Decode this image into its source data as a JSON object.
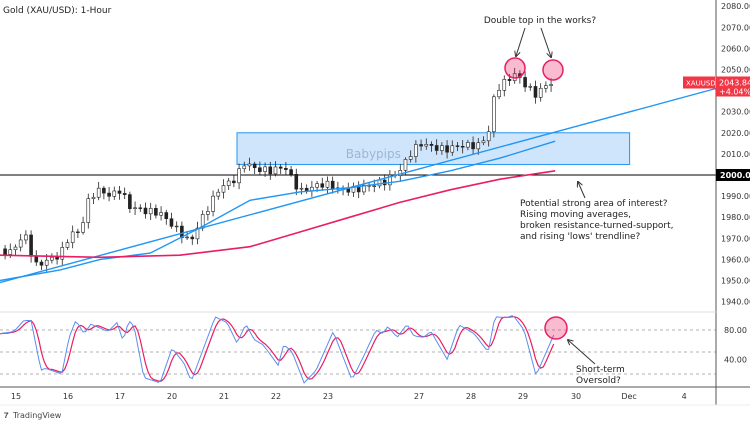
{
  "chart_data": {
    "type": "candlestick",
    "title": "Gold (XAU/USD): 1-Hour",
    "symbol": "XAUUSD",
    "last_price": "2043.845",
    "change": "+4.04%",
    "price_axis": {
      "ylim": [
        1935,
        2082
      ],
      "ticks": [
        2080,
        2070,
        2060,
        2050,
        2030,
        2020,
        2010,
        2000,
        1990,
        1980,
        1970,
        1960,
        1950,
        1940
      ],
      "tick_labels": [
        "2080.000",
        "2070.000",
        "2060.000",
        "2050.000",
        "2030.000",
        "2020.000",
        "2010.000",
        "2000.000",
        "1990.000",
        "1980.000",
        "1970.000",
        "1960.000",
        "1950.000",
        "1940.000"
      ],
      "highlight_level": 2000
    },
    "time_axis": {
      "labels": [
        "15",
        "16",
        "17",
        "20",
        "21",
        "22",
        "23",
        "27",
        "28",
        "29",
        "30",
        "Dec",
        "4"
      ],
      "session_index": [
        0,
        1,
        2,
        3,
        4,
        5,
        6,
        7.75,
        8.75,
        9.75,
        10.77,
        11.79,
        12.85
      ]
    },
    "close_series": [
      [
        -0.31,
        1965
      ],
      [
        -0.12,
        1963
      ],
      [
        0.17,
        1972
      ],
      [
        0.37,
        1957
      ],
      [
        0.65,
        1960
      ],
      [
        0.85,
        1962
      ],
      [
        1.04,
        1972
      ],
      [
        1.23,
        1973
      ],
      [
        1.42,
        1990
      ],
      [
        1.62,
        1993
      ],
      [
        1.81,
        1990
      ],
      [
        2.0,
        1993
      ],
      [
        2.19,
        1985
      ],
      [
        2.48,
        1983
      ],
      [
        2.77,
        1982
      ],
      [
        3.06,
        1975
      ],
      [
        3.35,
        1968
      ],
      [
        3.54,
        1978
      ],
      [
        3.73,
        1986
      ],
      [
        3.92,
        1994
      ],
      [
        4.21,
        1998
      ],
      [
        4.4,
        2006
      ],
      [
        4.6,
        2003
      ],
      [
        4.88,
        2002
      ],
      [
        5.17,
        2004
      ],
      [
        5.46,
        1992
      ],
      [
        5.65,
        1994
      ],
      [
        5.94,
        1996
      ],
      [
        6.23,
        1993
      ],
      [
        6.52,
        1993
      ],
      [
        6.81,
        1995
      ],
      [
        7.1,
        1997
      ],
      [
        7.38,
        2002
      ],
      [
        7.58,
        2010
      ],
      [
        7.77,
        2015
      ],
      [
        8.06,
        2013
      ],
      [
        8.25,
        2012
      ],
      [
        8.54,
        2014
      ],
      [
        8.92,
        2014
      ],
      [
        9.12,
        2022
      ],
      [
        9.21,
        2040
      ],
      [
        9.4,
        2044
      ],
      [
        9.6,
        2048
      ],
      [
        9.79,
        2043
      ],
      [
        9.98,
        2038
      ],
      [
        10.17,
        2042
      ],
      [
        10.37,
        2045
      ]
    ],
    "ma_fast": {
      "color": "#2196f3",
      "points": [
        [
          -0.31,
          1950
        ],
        [
          0.85,
          1955
        ],
        [
          1.62,
          1960
        ],
        [
          2.58,
          1963
        ],
        [
          3.54,
          1975
        ],
        [
          4.5,
          1988
        ],
        [
          5.46,
          1992
        ],
        [
          6.42,
          1994
        ],
        [
          7.38,
          1997
        ],
        [
          8.35,
          2002
        ],
        [
          9.31,
          2008
        ],
        [
          10.37,
          2016
        ]
      ]
    },
    "ma_slow": {
      "color": "#e91e63",
      "points": [
        [
          -0.31,
          1962
        ],
        [
          1.62,
          1961
        ],
        [
          3.15,
          1962
        ],
        [
          4.5,
          1966
        ],
        [
          5.46,
          1973
        ],
        [
          6.42,
          1980
        ],
        [
          7.38,
          1987
        ],
        [
          8.35,
          1993
        ],
        [
          9.31,
          1998
        ],
        [
          10.37,
          2002
        ]
      ]
    },
    "trendline": {
      "color": "#2196f3",
      "from": [
        -0.31,
        1949
      ],
      "to": [
        13.46,
        2041
      ]
    },
    "zone": {
      "label": "Babypips",
      "t_range": [
        4.25,
        11.8
      ],
      "price_range": [
        2005,
        2020
      ],
      "fill": "#cfe5fb",
      "stroke": "#2196f3"
    },
    "stochastic": {
      "ylim": [
        0,
        100
      ],
      "levels": [
        80,
        50,
        20
      ],
      "tick_labels": [
        "80.00",
        "40.00"
      ],
      "k_color": "#5b8def",
      "d_color": "#e91e63",
      "k": [
        [
          -0.31,
          75
        ],
        [
          -0.04,
          78
        ],
        [
          0.15,
          93
        ],
        [
          0.29,
          93
        ],
        [
          0.48,
          25
        ],
        [
          0.56,
          28
        ],
        [
          0.88,
          20
        ],
        [
          1.02,
          70
        ],
        [
          1.15,
          93
        ],
        [
          1.31,
          75
        ],
        [
          1.44,
          88
        ],
        [
          1.77,
          78
        ],
        [
          1.94,
          90
        ],
        [
          2.06,
          65
        ],
        [
          2.17,
          93
        ],
        [
          2.27,
          85
        ],
        [
          2.46,
          15
        ],
        [
          2.77,
          8
        ],
        [
          3.0,
          55
        ],
        [
          3.23,
          35
        ],
        [
          3.37,
          10
        ],
        [
          3.83,
          98
        ],
        [
          4.06,
          90
        ],
        [
          4.25,
          62
        ],
        [
          4.42,
          88
        ],
        [
          4.58,
          67
        ],
        [
          4.75,
          60
        ],
        [
          5.04,
          32
        ],
        [
          5.15,
          60
        ],
        [
          5.31,
          50
        ],
        [
          5.54,
          8
        ],
        [
          5.77,
          25
        ],
        [
          6.1,
          78
        ],
        [
          6.46,
          12
        ],
        [
          6.69,
          45
        ],
        [
          6.92,
          80
        ],
        [
          7.06,
          75
        ],
        [
          7.15,
          85
        ],
        [
          7.33,
          70
        ],
        [
          7.52,
          88
        ],
        [
          7.65,
          72
        ],
        [
          7.83,
          70
        ],
        [
          7.98,
          78
        ],
        [
          8.29,
          40
        ],
        [
          8.52,
          87
        ],
        [
          8.81,
          75
        ],
        [
          9.08,
          50
        ],
        [
          9.21,
          98
        ],
        [
          9.44,
          97
        ],
        [
          9.56,
          100
        ],
        [
          9.77,
          80
        ],
        [
          10.0,
          18
        ],
        [
          10.37,
          78
        ]
      ]
    },
    "annotations": {
      "double_top": "Double top in the works?",
      "interest_lines": [
        "Potential strong area of interest?",
        "Rising moving averages,",
        "broken resistance-turned-support,",
        "and rising 'lows' trendline?"
      ],
      "oversold_lines": [
        "Short-term",
        "Oversold?"
      ],
      "highlight_color": "#e91e63"
    },
    "branding": "TradingView"
  }
}
